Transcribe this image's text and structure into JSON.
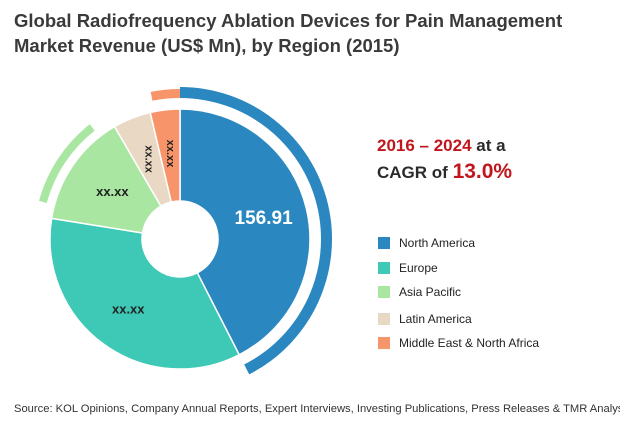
{
  "title": {
    "line1": "Global Radiofrequency Ablation Devices for Pain Management",
    "line2": "Market Revenue (US$ Mn), by Region (2015)"
  },
  "cagr": {
    "period": "2016 – 2024",
    "at_a": "at a",
    "cagr_of": "CAGR of",
    "value": "13.0%"
  },
  "chart_data": {
    "type": "pie",
    "title": "Global Radiofrequency Ablation Devices for Pain Management Market Revenue (US$ Mn), by Region (2015)",
    "style": "donut",
    "categories": [
      "North America",
      "Europe",
      "Asia Pacific",
      "Latin America",
      "Middle East & North Africa"
    ],
    "values": [
      156.91,
      129.5,
      52.0,
      17.4,
      13.6
    ],
    "share_percent": [
      42.5,
      35.0,
      14.1,
      4.7,
      3.7
    ],
    "data_labels": [
      "156.91",
      "xx.xx",
      "xx.xx",
      "xx.xx",
      "xx.xx"
    ],
    "colors": [
      "#2b87c0",
      "#3ec9b6",
      "#a8e6a1",
      "#e9d8c3",
      "#f7946a"
    ],
    "legend_placement": "right"
  },
  "legend": [
    {
      "label": "North America",
      "color": "#2b87c0"
    },
    {
      "label": "Europe",
      "color": "#3ec9b6"
    },
    {
      "label": "Asia Pacific",
      "color": "#a8e6a1"
    },
    {
      "label": "Latin America",
      "color": "#e9d8c3"
    },
    {
      "label": "Middle East & North Africa",
      "color": "#f7946a"
    }
  ],
  "source": "Source: KOL Opinions, Company Annual Reports, Expert Interviews, Investing Publications, Press Releases & TMR Analysis"
}
